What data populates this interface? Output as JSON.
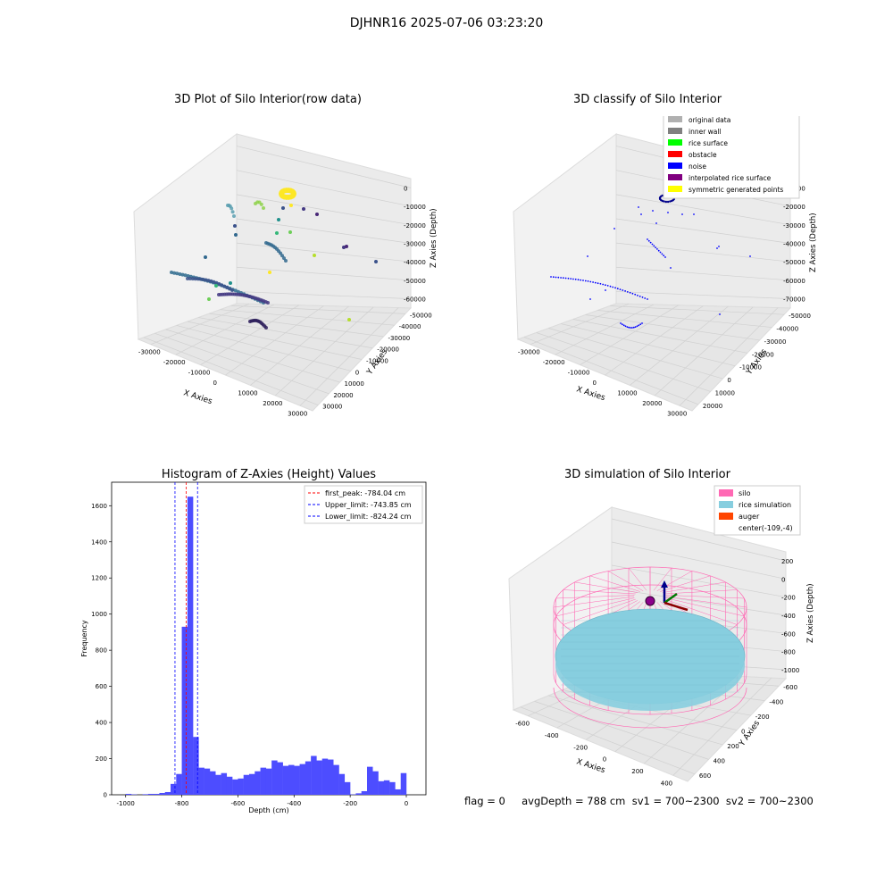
{
  "suptitle": "DJHNR16 2025-07-06 03:23:20",
  "footer": "flag = 0     avgDepth = 788 cm  sv1 = 700~2300  sv2 = 700~2300",
  "colors": {
    "histogram_bar": "#4d4dff",
    "peak_line": "#ff0000",
    "limit_line": "#0000ff",
    "silo": "#ff69b4",
    "rice": "#87cedf",
    "auger": "#ff4500",
    "noise": "#0000ff"
  },
  "chart_data": [
    {
      "type": "scatter",
      "title": "3D Plot of Silo Interior(row data)",
      "xlabel": "X Axies",
      "ylabel": "Y Axies",
      "zlabel": "Z Axies (Depth)",
      "x_ticks": [
        "-30000",
        "-20000",
        "-10000",
        "0",
        "10000",
        "20000",
        "30000"
      ],
      "y_ticks": [
        "30000",
        "20000",
        "10000",
        "0",
        "-10000",
        "-20000",
        "-30000",
        "-40000",
        "-50000"
      ],
      "z_ticks": [
        "0",
        "-10000",
        "-20000",
        "-30000",
        "-40000",
        "-50000",
        "-60000"
      ],
      "grid": true
    },
    {
      "type": "scatter",
      "title": "3D classify of Silo Interior",
      "xlabel": "X Axies",
      "ylabel": "Y Axies",
      "zlabel": "Z Axies (Depth)",
      "x_ticks": [
        "-30000",
        "-20000",
        "-10000",
        "0",
        "10000",
        "20000",
        "30000"
      ],
      "y_ticks": [
        "20000",
        "10000",
        "0",
        "-10000",
        "-20000",
        "-30000",
        "-40000",
        "-50000"
      ],
      "z_ticks": [
        "-10000",
        "-20000",
        "-30000",
        "-40000",
        "-50000",
        "-60000",
        "-70000"
      ],
      "legend": [
        {
          "label": "original data",
          "color": "#b0b0b0"
        },
        {
          "label": "inner wall",
          "color": "#808080"
        },
        {
          "label": "rice surface",
          "color": "#00ff00"
        },
        {
          "label": "obstacle",
          "color": "#ff0000"
        },
        {
          "label": "noise",
          "color": "#0000ff"
        },
        {
          "label": "interpolated rice surface",
          "color": "#800080"
        },
        {
          "label": "symmetric generated points",
          "color": "#ffff00"
        }
      ],
      "legend_position": "top-right",
      "grid": true
    },
    {
      "type": "bar",
      "title": "Histogram of Z-Axies (Height) Values",
      "xlabel": "Depth (cm)",
      "ylabel": "Frequency",
      "xlim": [
        -1050,
        70
      ],
      "ylim": [
        0,
        1730
      ],
      "x_ticks": [
        -1000,
        -800,
        -600,
        -400,
        -200,
        0
      ],
      "y_ticks": [
        0,
        200,
        400,
        600,
        800,
        1000,
        1200,
        1400,
        1600
      ],
      "bin_start": -1000,
      "bin_width": 20,
      "values": [
        5,
        2,
        0,
        3,
        5,
        5,
        10,
        15,
        60,
        115,
        930,
        1650,
        320,
        150,
        145,
        130,
        110,
        120,
        100,
        85,
        90,
        110,
        115,
        130,
        150,
        145,
        190,
        180,
        160,
        165,
        160,
        170,
        185,
        215,
        190,
        200,
        195,
        165,
        115,
        70,
        2,
        8,
        20,
        155,
        130,
        75,
        80,
        70,
        30,
        120
      ],
      "lines": [
        {
          "label": "first_peak: -784.04 cm",
          "x": -784.04,
          "color": "#ff0000"
        },
        {
          "label": "Upper_limit: -743.85 cm",
          "x": -743.85,
          "color": "#0000ff"
        },
        {
          "label": "Lower_limit: -824.24 cm",
          "x": -824.24,
          "color": "#0000ff"
        }
      ],
      "legend_position": "top-right"
    },
    {
      "type": "scatter",
      "title": "3D simulation of Silo Interior",
      "xlabel": "X Axies",
      "ylabel": "Y Axies",
      "zlabel": "Z Axies (Depth)",
      "x_ticks": [
        "-600",
        "-400",
        "-200",
        "0",
        "200",
        "400"
      ],
      "y_ticks": [
        "600",
        "400",
        "200",
        "0",
        "-200",
        "-400",
        "-600"
      ],
      "z_ticks": [
        "200",
        "0",
        "-200",
        "-400",
        "-600",
        "-800",
        "-1000"
      ],
      "legend": [
        {
          "label": "silo",
          "color": "#ff69b4"
        },
        {
          "label": "rice simulation",
          "color": "#87cedf"
        },
        {
          "label": "auger",
          "color": "#ff4500"
        },
        {
          "label": "center(-109,-4)",
          "color": "none"
        }
      ],
      "legend_position": "top-right",
      "grid": true
    }
  ]
}
